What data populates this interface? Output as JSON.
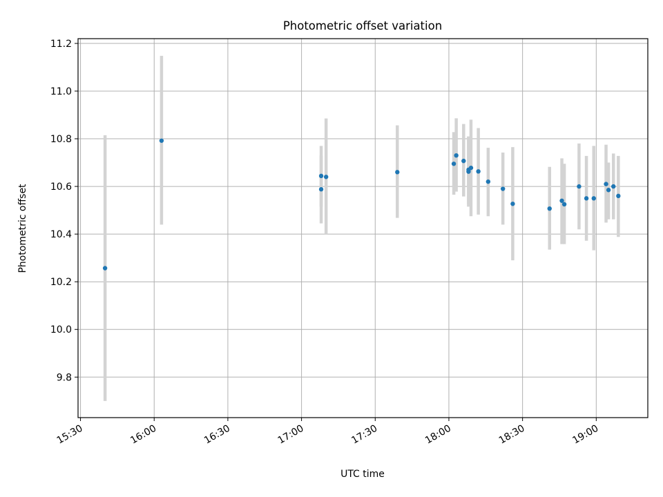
{
  "chart_data": {
    "type": "scatter",
    "title": "Photometric offset variation",
    "xlabel": "UTC time",
    "ylabel": "Photometric offset",
    "x_unit": "time",
    "xlim": [
      "15:29",
      "19:21"
    ],
    "ylim": [
      9.63,
      11.22
    ],
    "x_ticks": [
      "15:30",
      "16:00",
      "16:30",
      "17:00",
      "17:30",
      "18:00",
      "18:30",
      "19:00"
    ],
    "y_ticks": [
      9.8,
      10.0,
      10.2,
      10.4,
      10.6,
      10.8,
      11.0,
      11.2
    ],
    "y_tick_labels": [
      "9.8",
      "10.0",
      "10.2",
      "10.4",
      "10.6",
      "10.8",
      "11.0",
      "11.2"
    ],
    "grid": true,
    "series": [
      {
        "marker_color": "#1f77b4",
        "errorbar_color": "#d3d3d3",
        "points": [
          {
            "x": "15:40",
            "y": 10.257,
            "low": 9.7,
            "high": 10.815
          },
          {
            "x": "16:03",
            "y": 10.792,
            "low": 10.44,
            "high": 11.148
          },
          {
            "x": "17:08",
            "y": 10.644,
            "low": 10.515,
            "high": 10.77
          },
          {
            "x": "17:08",
            "y": 10.588,
            "low": 10.445,
            "high": 10.73
          },
          {
            "x": "17:10",
            "y": 10.64,
            "low": 10.4,
            "high": 10.885
          },
          {
            "x": "17:39",
            "y": 10.66,
            "low": 10.468,
            "high": 10.856
          },
          {
            "x": "18:02",
            "y": 10.695,
            "low": 10.565,
            "high": 10.828
          },
          {
            "x": "18:03",
            "y": 10.73,
            "low": 10.578,
            "high": 10.886
          },
          {
            "x": "18:06",
            "y": 10.707,
            "low": 10.558,
            "high": 10.862
          },
          {
            "x": "18:08",
            "y": 10.67,
            "low": 10.525,
            "high": 10.808
          },
          {
            "x": "18:08",
            "y": 10.662,
            "low": 10.515,
            "high": 10.81
          },
          {
            "x": "18:09",
            "y": 10.678,
            "low": 10.475,
            "high": 10.88
          },
          {
            "x": "18:12",
            "y": 10.663,
            "low": 10.482,
            "high": 10.845
          },
          {
            "x": "18:16",
            "y": 10.62,
            "low": 10.475,
            "high": 10.762
          },
          {
            "x": "18:22",
            "y": 10.59,
            "low": 10.44,
            "high": 10.742
          },
          {
            "x": "18:26",
            "y": 10.527,
            "low": 10.29,
            "high": 10.765
          },
          {
            "x": "18:41",
            "y": 10.507,
            "low": 10.335,
            "high": 10.682
          },
          {
            "x": "18:46",
            "y": 10.54,
            "low": 10.358,
            "high": 10.718
          },
          {
            "x": "18:47",
            "y": 10.525,
            "low": 10.358,
            "high": 10.695
          },
          {
            "x": "18:53",
            "y": 10.6,
            "low": 10.42,
            "high": 10.78
          },
          {
            "x": "18:56",
            "y": 10.55,
            "low": 10.372,
            "high": 10.728
          },
          {
            "x": "18:59",
            "y": 10.55,
            "low": 10.332,
            "high": 10.77
          },
          {
            "x": "19:04",
            "y": 10.61,
            "low": 10.448,
            "high": 10.775
          },
          {
            "x": "19:05",
            "y": 10.585,
            "low": 10.462,
            "high": 10.7
          },
          {
            "x": "19:07",
            "y": 10.6,
            "low": 10.462,
            "high": 10.738
          },
          {
            "x": "19:09",
            "y": 10.56,
            "low": 10.388,
            "high": 10.728
          }
        ]
      }
    ]
  }
}
